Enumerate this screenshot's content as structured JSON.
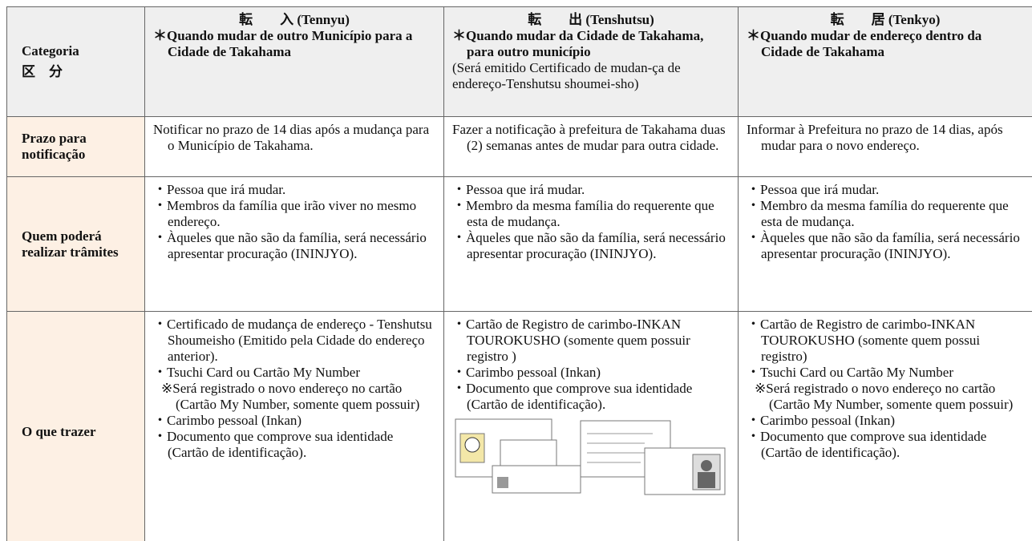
{
  "header": {
    "category": {
      "pt": "Categoria",
      "ja": "区　分"
    },
    "columns": [
      {
        "title": "転　　入 (Tennyu)",
        "note": "＊Quando mudar de outro Município para a Cidade de Takahama"
      },
      {
        "title": "転　　出 (Tenshutsu)",
        "note": "＊Quando mudar da Cidade de Takahama, para outro município",
        "detail": "(Será emitido Certificado de mudan-ça de endereço-Tenshutsu shoumei-sho)"
      },
      {
        "title": "転　　居 (Tenkyo)",
        "note": "＊Quando mudar de endereço dentro da Cidade de Takahama"
      }
    ]
  },
  "rows": [
    {
      "label": "Prazo para notificação",
      "cells": [
        [
          "Notificar no prazo de 14 dias após a mudança para o Município de Takahama."
        ],
        [
          "Fazer a notificação à prefeitura de Takahama duas (2) semanas antes de mudar para outra cidade."
        ],
        [
          "Informar à Prefeitura no prazo de 14 dias, após mudar para o novo endereço."
        ]
      ]
    },
    {
      "label": "Quem poderá realizar trâmites",
      "cells": [
        [
          "・Pessoa que irá mudar.",
          "・Membros da família que irão viver no mesmo endereço.",
          "・Àqueles que não são da família, será necessário apresentar procuração (ININJYO)."
        ],
        [
          "・Pessoa que irá mudar.",
          "・Membro da mesma família do requerente que esta de mudança.",
          "・Àqueles que não são da família, será necessário apresentar procuração (ININJYO)."
        ],
        [
          "・Pessoa que irá mudar.",
          "・Membro da mesma família do requerente que esta de mudança.",
          "・Àqueles que não são da família, será necessário apresentar procuração (ININJYO)."
        ]
      ]
    },
    {
      "label": "O que trazer",
      "cells": [
        [
          "・Certificado de mudança de endereço - Tenshutsu Shoumeisho (Emitido pela Cidade do endereço anterior).",
          "・Tsuchi Card ou Cartão My Number",
          "※Será registrado o novo endereço no cartão (Cartão My Number, somente quem possuir)",
          "・Carimbo pessoal (Inkan)",
          "・Documento que comprove sua identidade (Cartão de identificação)."
        ],
        [
          "・Cartão de Registro de carimbo-INKAN TOUROKUSHO (somente quem possuir registro )",
          "・Carimbo pessoal (Inkan)",
          "・Documento que comprove sua identidade (Cartão de identificação)."
        ],
        [
          "・Cartão de Registro de carimbo-INKAN TOUROKUSHO (somente quem possui registro)",
          "・Tsuchi Card ou Cartão My Number",
          "※Será registrado o novo endereço no cartão (Cartão My Number, somente quem possuir)",
          "・Carimbo pessoal (Inkan)",
          "・Documento que comprove sua identidade (Cartão de identificação)."
        ]
      ]
    }
  ]
}
